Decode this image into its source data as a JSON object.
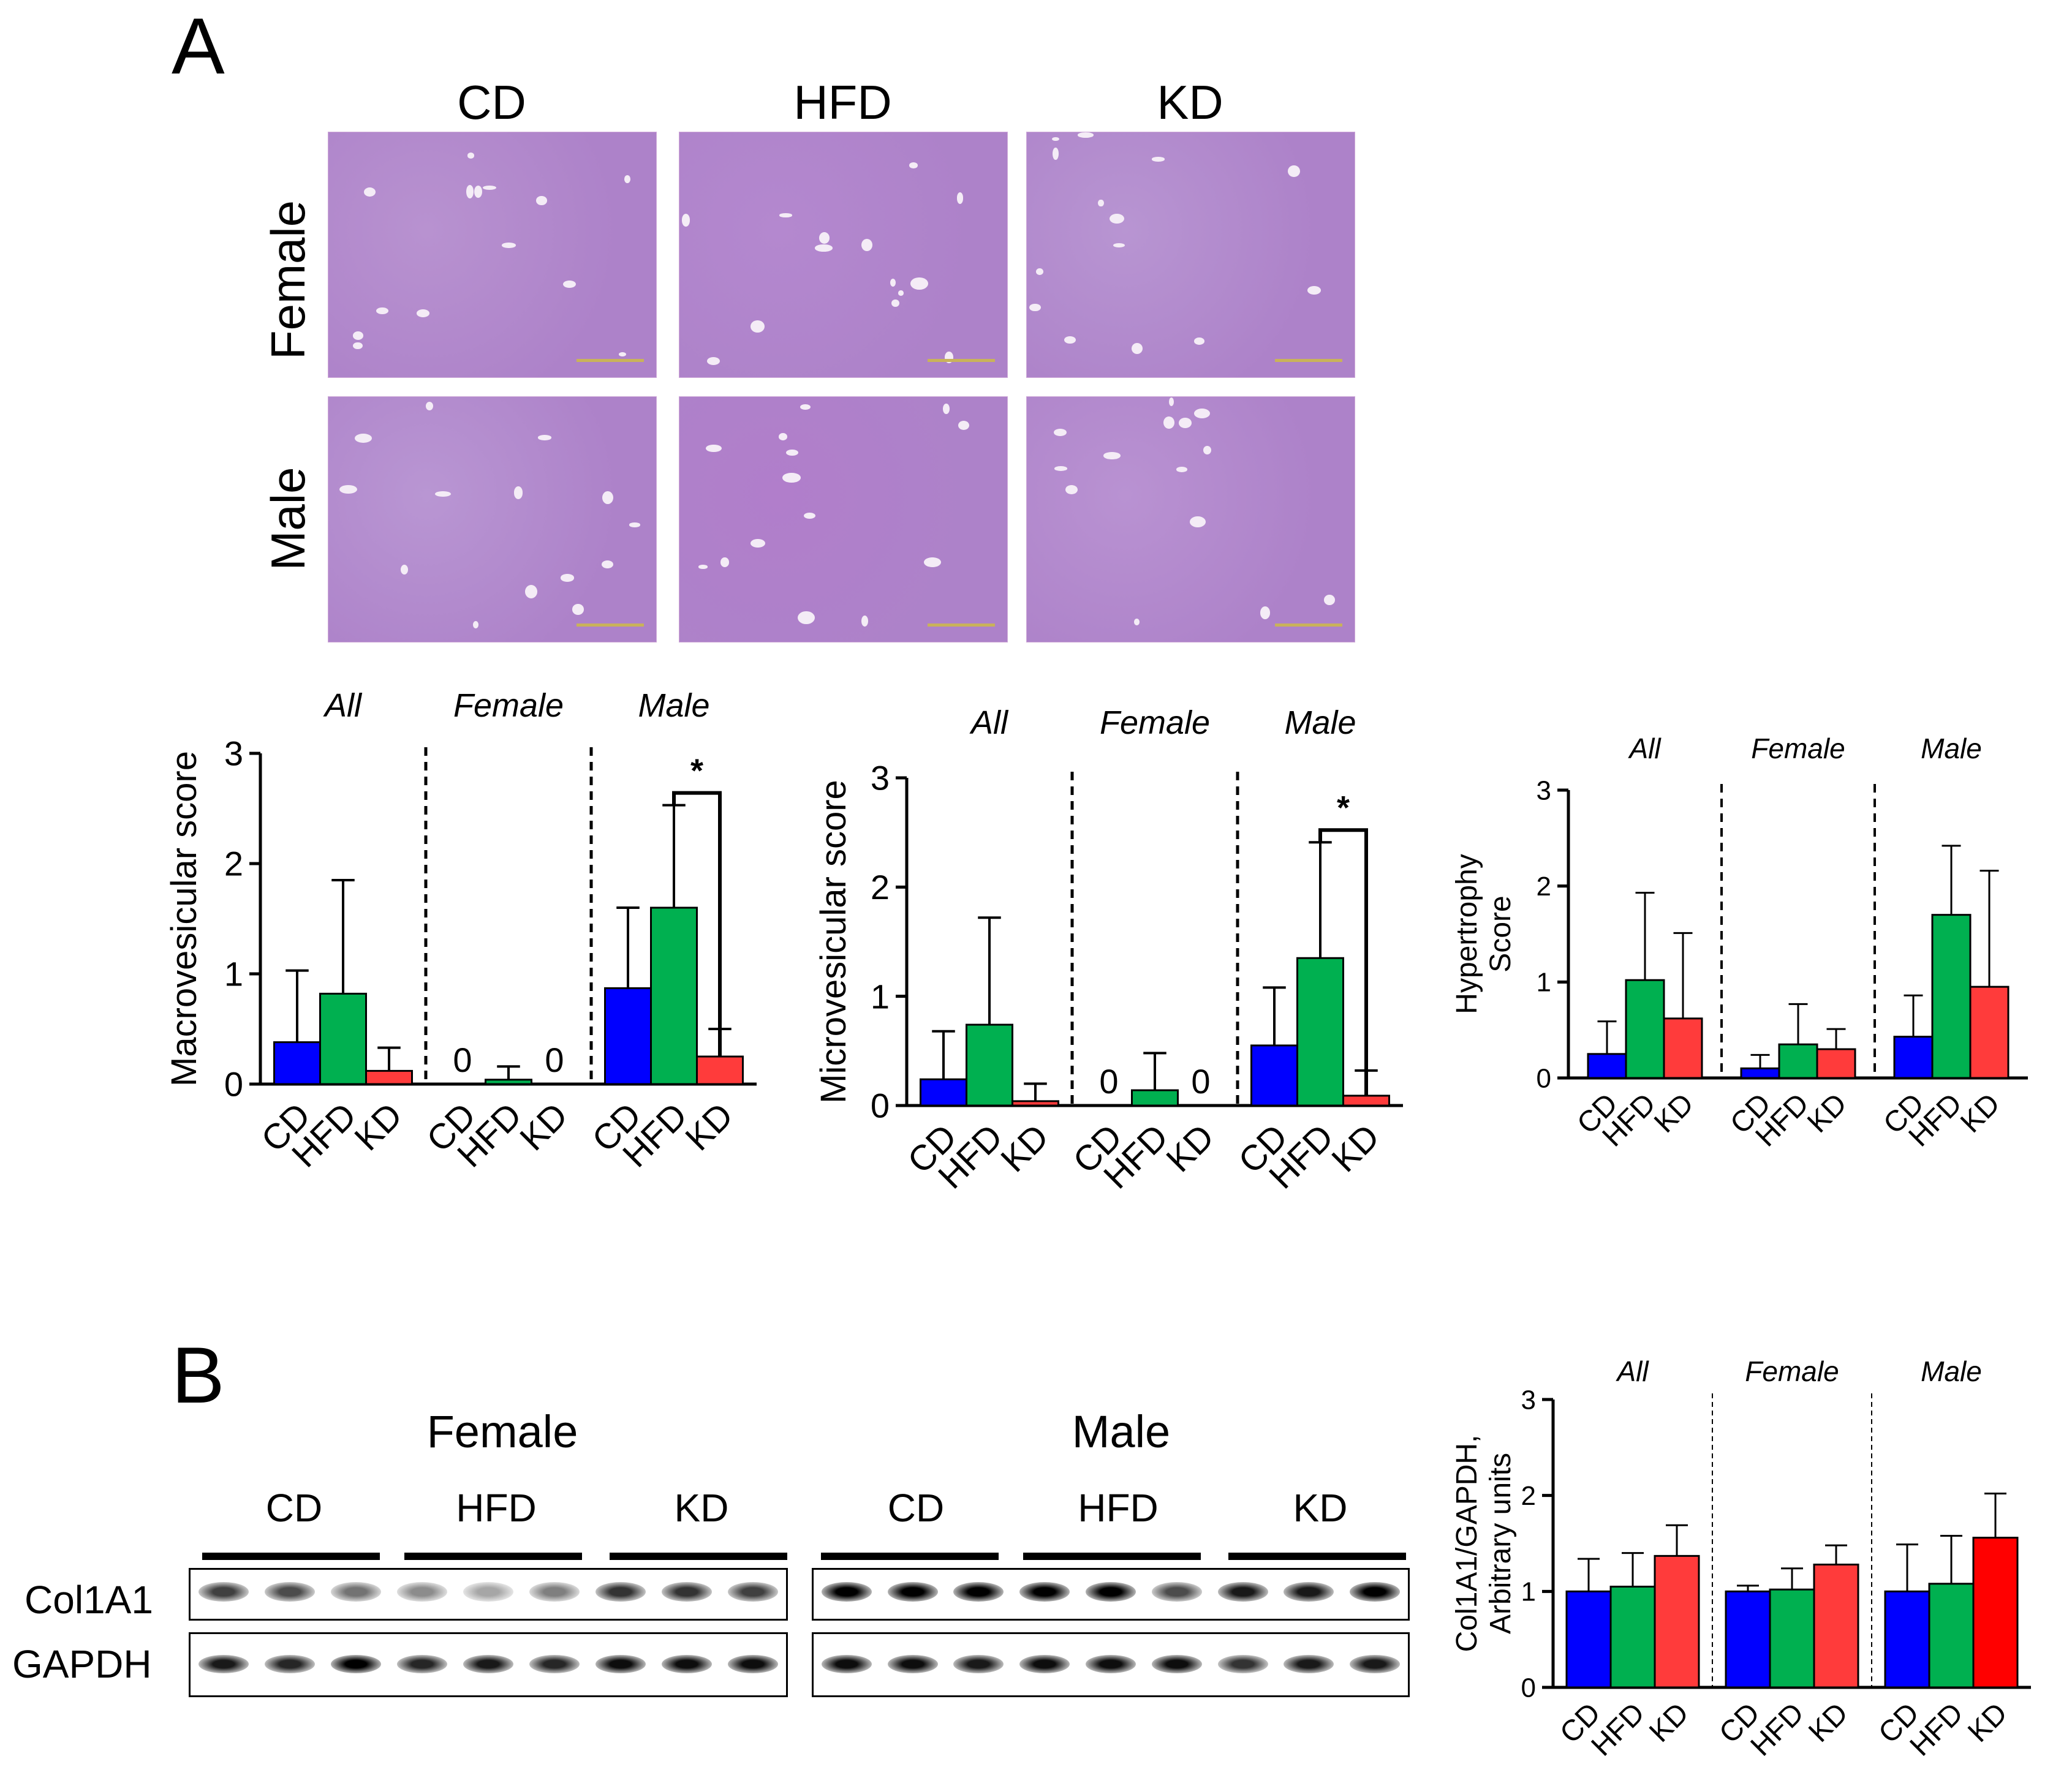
{
  "panels": {
    "a_letter": "A",
    "b_letter": "B"
  },
  "histology": {
    "columns": [
      "CD",
      "HFD",
      "KD"
    ],
    "rows": [
      "Female",
      "Male"
    ]
  },
  "chart_data": [
    {
      "type": "bar",
      "ylabel": "Macrovesicular score",
      "ylim": [
        0,
        3
      ],
      "yticks": [
        "0",
        "1",
        "2",
        "3"
      ],
      "groups": [
        "All",
        "Female",
        "Male"
      ],
      "categories": [
        "CD",
        "HFD",
        "KD"
      ],
      "series": [
        {
          "group": "All",
          "values": [
            0.38,
            0.82,
            0.12
          ],
          "errors": [
            0.65,
            1.03,
            0.21
          ]
        },
        {
          "group": "Female",
          "values": [
            0,
            0.04,
            0
          ],
          "errors": [
            0,
            0.12,
            0
          ]
        },
        {
          "group": "Male",
          "values": [
            0.87,
            1.6,
            0.25
          ],
          "errors": [
            0.73,
            0.93,
            0.25
          ]
        }
      ],
      "zero_labels": [
        "0",
        "0"
      ],
      "significance": "*"
    },
    {
      "type": "bar",
      "ylabel": "Microvesicular score",
      "ylim": [
        0,
        3
      ],
      "yticks": [
        "0",
        "1",
        "2",
        "3"
      ],
      "groups": [
        "All",
        "Female",
        "Male"
      ],
      "categories": [
        "CD",
        "HFD",
        "KD"
      ],
      "series": [
        {
          "group": "All",
          "values": [
            0.24,
            0.74,
            0.04
          ],
          "errors": [
            0.44,
            0.98,
            0.16
          ]
        },
        {
          "group": "Female",
          "values": [
            0,
            0.14,
            0
          ],
          "errors": [
            0,
            0.34,
            0
          ]
        },
        {
          "group": "Male",
          "values": [
            0.55,
            1.35,
            0.09
          ],
          "errors": [
            0.53,
            1.06,
            0.23
          ]
        }
      ],
      "zero_labels": [
        "0",
        "0"
      ],
      "significance": "*"
    },
    {
      "type": "bar",
      "ylabel": "Hypertrophy\nScore",
      "ylabel_lines": [
        "Hypertrophy",
        "Score"
      ],
      "ylim": [
        0,
        3
      ],
      "yticks": [
        "0",
        "1",
        "2",
        "3"
      ],
      "groups": [
        "All",
        "Female",
        "Male"
      ],
      "categories": [
        "CD",
        "HFD",
        "KD"
      ],
      "series": [
        {
          "group": "All",
          "values": [
            0.25,
            1.02,
            0.62
          ],
          "errors": [
            0.34,
            0.91,
            0.89
          ]
        },
        {
          "group": "Female",
          "values": [
            0.1,
            0.35,
            0.3
          ],
          "errors": [
            0.14,
            0.42,
            0.21
          ]
        },
        {
          "group": "Male",
          "values": [
            0.43,
            1.7,
            0.95
          ],
          "errors": [
            0.43,
            0.72,
            1.21
          ]
        }
      ]
    },
    {
      "type": "bar",
      "ylabel": "Col1A1/GAPDH,\nArbitrary units",
      "ylabel_lines": [
        "Col1A1/GAPDH,",
        "Arbitrary units"
      ],
      "ylim": [
        0,
        3
      ],
      "yticks": [
        "0",
        "1",
        "2",
        "3"
      ],
      "groups": [
        "All",
        "Female",
        "Male"
      ],
      "categories": [
        "CD",
        "HFD",
        "KD"
      ],
      "series": [
        {
          "group": "All",
          "values": [
            1.0,
            1.05,
            1.37
          ],
          "errors": [
            0.34,
            0.35,
            0.32
          ]
        },
        {
          "group": "Female",
          "values": [
            1.0,
            1.02,
            1.28
          ],
          "errors": [
            0.06,
            0.22,
            0.2
          ]
        },
        {
          "group": "Male",
          "values": [
            1.0,
            1.08,
            1.56
          ],
          "errors": [
            0.49,
            0.5,
            0.46
          ]
        }
      ]
    }
  ],
  "colors": {
    "CD": "#0000ff",
    "HFD": "#00b050",
    "KD": "#ff3b3b",
    "KD_male_blot": "#ff0000",
    "tissue": "#b98ed1"
  },
  "western": {
    "sex_labels": [
      "Female",
      "Male"
    ],
    "lane_groups": [
      "CD",
      "HFD",
      "KD",
      "CD",
      "HFD",
      "KD"
    ],
    "proteins": [
      "Col1A1",
      "GAPDH"
    ],
    "col1a1_intensity": [
      0.75,
      0.7,
      0.55,
      0.45,
      0.35,
      0.5,
      0.8,
      0.8,
      0.75,
      1,
      1,
      1,
      1,
      1,
      0.7,
      0.9,
      0.9,
      1
    ],
    "gapdh_intensity": [
      0.9,
      0.85,
      1,
      0.85,
      0.9,
      0.85,
      0.95,
      0.95,
      0.95,
      0.95,
      0.95,
      0.9,
      0.95,
      0.95,
      0.95,
      0.8,
      0.9,
      0.9
    ]
  }
}
